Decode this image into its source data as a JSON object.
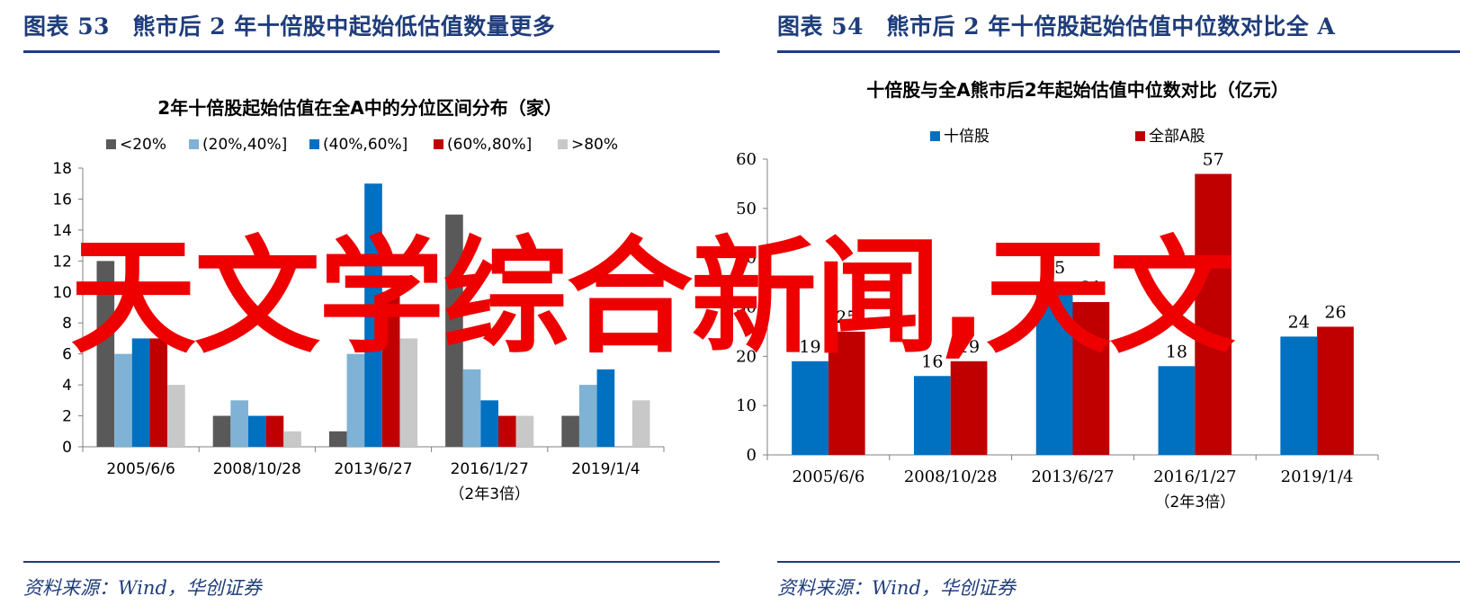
{
  "panels": [
    {
      "figure_title": "图表 53　熊市后 2 年十倍股中起始低估值数量更多",
      "source": "资料来源：Wind，华创证券"
    },
    {
      "figure_title": "图表 54　熊市后 2 年十倍股起始估值中位数对比全 A",
      "source": "资料来源：Wind，华创证券"
    }
  ],
  "watermark": "天文学综合新闻,天文",
  "chart_data": [
    {
      "type": "bar",
      "title": "2年十倍股起始估值在全A中的分位区间分布（家）",
      "categories": [
        "2005/6/6",
        "2008/10/28",
        "2013/6/27",
        "2016/1/27",
        "2019/1/4"
      ],
      "category_notes": [
        "",
        "",
        "",
        "（2年3倍）",
        ""
      ],
      "ylim": [
        0,
        18
      ],
      "yticks": [
        0,
        2,
        4,
        6,
        8,
        10,
        12,
        14,
        16,
        18
      ],
      "legend_position": "top",
      "series": [
        {
          "name": "<20%",
          "color": "#595959",
          "values": [
            12,
            2,
            1,
            15,
            2
          ]
        },
        {
          "name": "(20%,40%]",
          "color": "#7fb2d4",
          "values": [
            6,
            3,
            6,
            5,
            4
          ]
        },
        {
          "name": "(40%,60%]",
          "color": "#0070c0",
          "values": [
            7,
            2,
            17,
            3,
            5
          ]
        },
        {
          "name": "(60%,80%]",
          "color": "#c00000",
          "values": [
            7,
            2,
            10,
            2,
            0
          ]
        },
        {
          "name": ">80%",
          "color": "#c8c8c8",
          "values": [
            4,
            1,
            7,
            2,
            3
          ]
        }
      ]
    },
    {
      "type": "bar",
      "title": "十倍股与全A熊市后2年起始估值中位数对比（亿元）",
      "categories": [
        "2005/6/6",
        "2008/10/28",
        "2013/6/27",
        "2016/1/27",
        "2019/1/4"
      ],
      "category_notes": [
        "",
        "",
        "",
        "（2年3倍）",
        ""
      ],
      "ylim": [
        0,
        60
      ],
      "yticks": [
        0,
        10,
        20,
        30,
        40,
        50,
        60
      ],
      "legend_position": "top",
      "series": [
        {
          "name": "十倍股",
          "color": "#0070c0",
          "values": [
            19,
            16,
            35,
            18,
            24
          ],
          "labels": [
            "19",
            "16",
            "35",
            "18",
            "24"
          ]
        },
        {
          "name": "全部A股",
          "color": "#c00000",
          "values": [
            25,
            19,
            31,
            57,
            26
          ],
          "labels": [
            "25",
            "19",
            "31",
            "57",
            "26"
          ]
        }
      ]
    }
  ]
}
